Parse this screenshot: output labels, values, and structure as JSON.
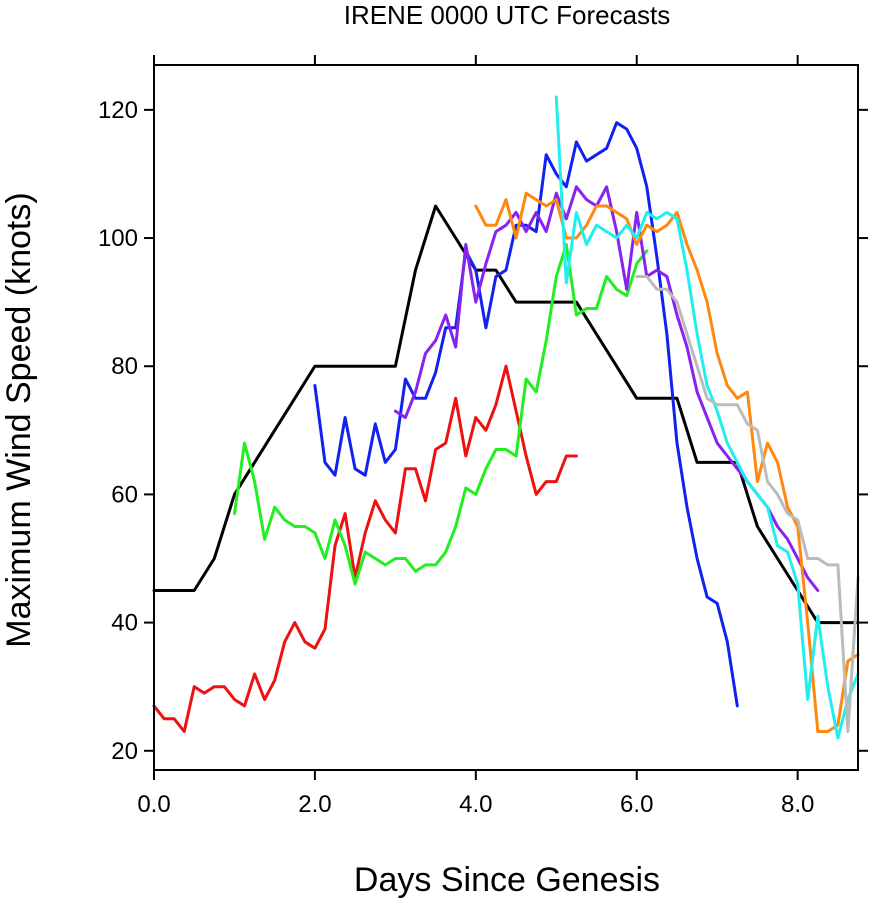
{
  "chart_data": {
    "type": "line",
    "title": "IRENE 0000 UTC Forecasts",
    "xlabel": "Days Since Genesis",
    "ylabel": "Maximum Wind Speed (knots)",
    "xlim": [
      0,
      8.75
    ],
    "ylim": [
      17,
      127
    ],
    "xticks": [
      0,
      2,
      4,
      6,
      8
    ],
    "xtick_labels": [
      "0.0",
      "2.0",
      "4.0",
      "6.0",
      "8.0"
    ],
    "yticks": [
      20,
      40,
      60,
      80,
      100,
      120
    ],
    "ytick_labels": [
      "20",
      "40",
      "60",
      "80",
      "100",
      "120"
    ],
    "grid": false,
    "legend": "none",
    "series": [
      {
        "color": "#000000",
        "x": [
          0,
          0.5,
          0.75,
          1.0,
          1.25,
          1.5,
          1.75,
          2.0,
          2.25,
          2.5,
          2.75,
          3.0,
          3.25,
          3.5,
          3.75,
          4.0,
          4.25,
          4.5,
          4.75,
          5.0,
          5.25,
          5.5,
          5.75,
          6.0,
          6.25,
          6.5,
          6.75,
          7.0,
          7.25,
          7.5,
          7.75,
          8.0,
          8.25,
          8.5,
          8.75
        ],
        "y": [
          45,
          45,
          50,
          60,
          65,
          70,
          75,
          80,
          80,
          80,
          80,
          80,
          95,
          105,
          100,
          95,
          95,
          90,
          90,
          90,
          90,
          85,
          80,
          75,
          75,
          75,
          65,
          65,
          65,
          55,
          50,
          45,
          40,
          40,
          40
        ]
      },
      {
        "color": "#ee1111",
        "x": [
          0,
          0.125,
          0.25,
          0.375,
          0.5,
          0.625,
          0.75,
          0.875,
          1.0,
          1.125,
          1.25,
          1.375,
          1.5,
          1.625,
          1.75,
          1.875,
          2.0,
          2.125,
          2.25,
          2.375,
          2.5,
          2.625,
          2.75,
          2.875,
          3.0,
          3.125,
          3.25,
          3.375,
          3.5,
          3.625,
          3.75,
          3.875,
          4.0,
          4.125,
          4.25,
          4.375,
          4.5,
          4.625,
          4.75,
          4.875,
          5.0,
          5.125,
          5.25
        ],
        "y": [
          27,
          25,
          25,
          23,
          30,
          29,
          30,
          30,
          28,
          27,
          32,
          28,
          31,
          37,
          40,
          37,
          36,
          39,
          52,
          57,
          47,
          54,
          59,
          56,
          54,
          64,
          64,
          59,
          67,
          68,
          75,
          66,
          72,
          70,
          74,
          80,
          73,
          66,
          60,
          62,
          62,
          66,
          66
        ]
      },
      {
        "color": "#22ee22",
        "x": [
          1.0,
          1.125,
          1.25,
          1.375,
          1.5,
          1.625,
          1.75,
          1.875,
          2.0,
          2.125,
          2.25,
          2.375,
          2.5,
          2.625,
          2.75,
          2.875,
          3.0,
          3.125,
          3.25,
          3.375,
          3.5,
          3.625,
          3.75,
          3.875,
          4.0,
          4.125,
          4.25,
          4.375,
          4.5,
          4.625,
          4.75,
          4.875,
          5.0,
          5.125,
          5.25,
          5.375,
          5.5,
          5.625,
          5.75,
          5.875,
          6.0,
          6.125
        ],
        "y": [
          57,
          68,
          62,
          53,
          58,
          56,
          55,
          55,
          54,
          50,
          56,
          52,
          46,
          51,
          50,
          49,
          50,
          50,
          48,
          49,
          49,
          51,
          55,
          61,
          60,
          64,
          67,
          67,
          66,
          78,
          76,
          84,
          94,
          99,
          88,
          89,
          89,
          94,
          92,
          91,
          96,
          98
        ]
      },
      {
        "color": "#1122ee",
        "x": [
          2.0,
          2.125,
          2.25,
          2.375,
          2.5,
          2.625,
          2.75,
          2.875,
          3.0,
          3.125,
          3.25,
          3.375,
          3.5,
          3.625,
          3.75,
          3.875,
          4.0,
          4.125,
          4.25,
          4.375,
          4.5,
          4.625,
          4.75,
          4.875,
          5.0,
          5.125,
          5.25,
          5.375,
          5.5,
          5.625,
          5.75,
          5.875,
          6.0,
          6.125,
          6.25,
          6.375,
          6.5,
          6.625,
          6.75,
          6.875,
          7.0,
          7.125,
          7.25
        ],
        "y": [
          77,
          65,
          63,
          72,
          64,
          63,
          71,
          65,
          67,
          78,
          75,
          75,
          79,
          86,
          86,
          98,
          95,
          86,
          94,
          95,
          102,
          102,
          101,
          113,
          110,
          108,
          115,
          112,
          113,
          114,
          118,
          117,
          114,
          108,
          97,
          85,
          68,
          58,
          50,
          44,
          43,
          37,
          27
        ]
      },
      {
        "color": "#8822ee",
        "x": [
          3.0,
          3.125,
          3.25,
          3.375,
          3.5,
          3.625,
          3.75,
          3.875,
          4.0,
          4.125,
          4.25,
          4.375,
          4.5,
          4.625,
          4.75,
          4.875,
          5.0,
          5.125,
          5.25,
          5.375,
          5.5,
          5.625,
          5.75,
          5.875,
          6.0,
          6.125,
          6.25,
          6.375,
          6.5,
          6.625,
          6.75,
          6.875,
          7.0,
          7.125,
          7.25,
          7.375,
          7.5,
          7.625,
          7.75,
          7.875,
          8.0,
          8.125,
          8.25
        ],
        "y": [
          73,
          72,
          76,
          82,
          84,
          88,
          83,
          99,
          90,
          96,
          101,
          102,
          104,
          101,
          104,
          101,
          107,
          103,
          108,
          106,
          105,
          108,
          101,
          92,
          104,
          94,
          95,
          94,
          88,
          83,
          76,
          72,
          68,
          66,
          64,
          62,
          60,
          58,
          55,
          53,
          50,
          47,
          45
        ]
      },
      {
        "color": "#ff8811",
        "x": [
          4.0,
          4.125,
          4.25,
          4.375,
          4.5,
          4.625,
          4.75,
          4.875,
          5.0,
          5.125,
          5.25,
          5.375,
          5.5,
          5.625,
          5.75,
          5.875,
          6.0,
          6.125,
          6.25,
          6.375,
          6.5,
          6.625,
          6.75,
          6.875,
          7.0,
          7.125,
          7.25,
          7.375,
          7.5,
          7.625,
          7.75,
          7.875,
          8.0,
          8.125,
          8.25,
          8.375,
          8.5,
          8.625,
          8.75
        ],
        "y": [
          105,
          102,
          102,
          106,
          100,
          107,
          106,
          105,
          106,
          100,
          100,
          102,
          105,
          105,
          104,
          103,
          99,
          102,
          101,
          102,
          104,
          99,
          95,
          90,
          82,
          77,
          75,
          76,
          62,
          68,
          65,
          58,
          55,
          40,
          23,
          23,
          24,
          34,
          35
        ]
      },
      {
        "color": "#22eeee",
        "x": [
          5.0,
          5.125,
          5.25,
          5.375,
          5.5,
          5.625,
          5.75,
          5.875,
          6.0,
          6.125,
          6.25,
          6.375,
          6.5,
          6.625,
          6.75,
          6.875,
          7.0,
          7.125,
          7.25,
          7.375,
          7.5,
          7.625,
          7.75,
          7.875,
          8.0,
          8.125,
          8.25,
          8.375,
          8.5,
          8.625,
          8.75
        ],
        "y": [
          122,
          93,
          104,
          99,
          102,
          101,
          100,
          102,
          100,
          104,
          103,
          104,
          103,
          95,
          85,
          77,
          73,
          68,
          65,
          62,
          60,
          58,
          52,
          51,
          46,
          28,
          41,
          30,
          22,
          28,
          32
        ]
      },
      {
        "color": "#bbbbbb",
        "x": [
          6.0,
          6.125,
          6.25,
          6.375,
          6.5,
          6.625,
          6.75,
          6.875,
          7.0,
          7.125,
          7.25,
          7.375,
          7.5,
          7.625,
          7.75,
          7.875,
          8.0,
          8.125,
          8.25,
          8.375,
          8.5,
          8.625,
          8.75
        ],
        "y": [
          94,
          94,
          92,
          92,
          90,
          85,
          80,
          75,
          74,
          74,
          74,
          71,
          70,
          62,
          60,
          57,
          56,
          50,
          50,
          49,
          49,
          23,
          47
        ]
      }
    ]
  }
}
